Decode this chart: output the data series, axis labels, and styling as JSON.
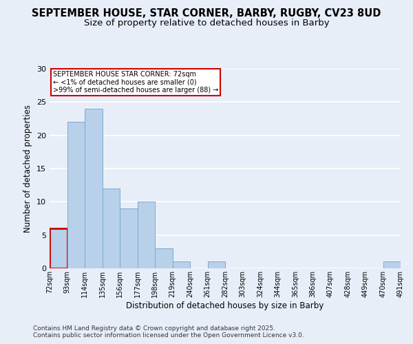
{
  "title": "SEPTEMBER HOUSE, STAR CORNER, BARBY, RUGBY, CV23 8UD",
  "subtitle": "Size of property relative to detached houses in Barby",
  "xlabel": "Distribution of detached houses by size in Barby",
  "ylabel": "Number of detached properties",
  "bar_values": [
    6,
    22,
    24,
    12,
    9,
    10,
    3,
    1,
    0,
    1,
    0,
    0,
    0,
    0,
    0,
    0,
    0,
    0,
    0,
    1
  ],
  "bar_labels": [
    "72sqm",
    "93sqm",
    "114sqm",
    "135sqm",
    "156sqm",
    "177sqm",
    "198sqm",
    "219sqm",
    "240sqm",
    "261sqm",
    "282sqm",
    "303sqm",
    "324sqm",
    "344sqm",
    "365sqm",
    "386sqm",
    "407sqm",
    "428sqm",
    "449sqm",
    "470sqm",
    "491sqm"
  ],
  "bar_color": "#b8d0ea",
  "bar_edge_color": "#7aaace",
  "highlight_index": 0,
  "highlight_edge_color": "#cc0000",
  "ylim": [
    0,
    30
  ],
  "yticks": [
    0,
    5,
    10,
    15,
    20,
    25,
    30
  ],
  "annotation_text": "SEPTEMBER HOUSE STAR CORNER: 72sqm\n← <1% of detached houses are smaller (0)\n>99% of semi-detached houses are larger (88) →",
  "bg_color": "#e8eef8",
  "grid_color": "#ffffff",
  "title_fontsize": 10.5,
  "subtitle_fontsize": 9.5,
  "axis_fontsize": 8.5,
  "tick_fontsize": 7,
  "footnote1": "Contains HM Land Registry data © Crown copyright and database right 2025.",
  "footnote2": "Contains public sector information licensed under the Open Government Licence v3.0."
}
